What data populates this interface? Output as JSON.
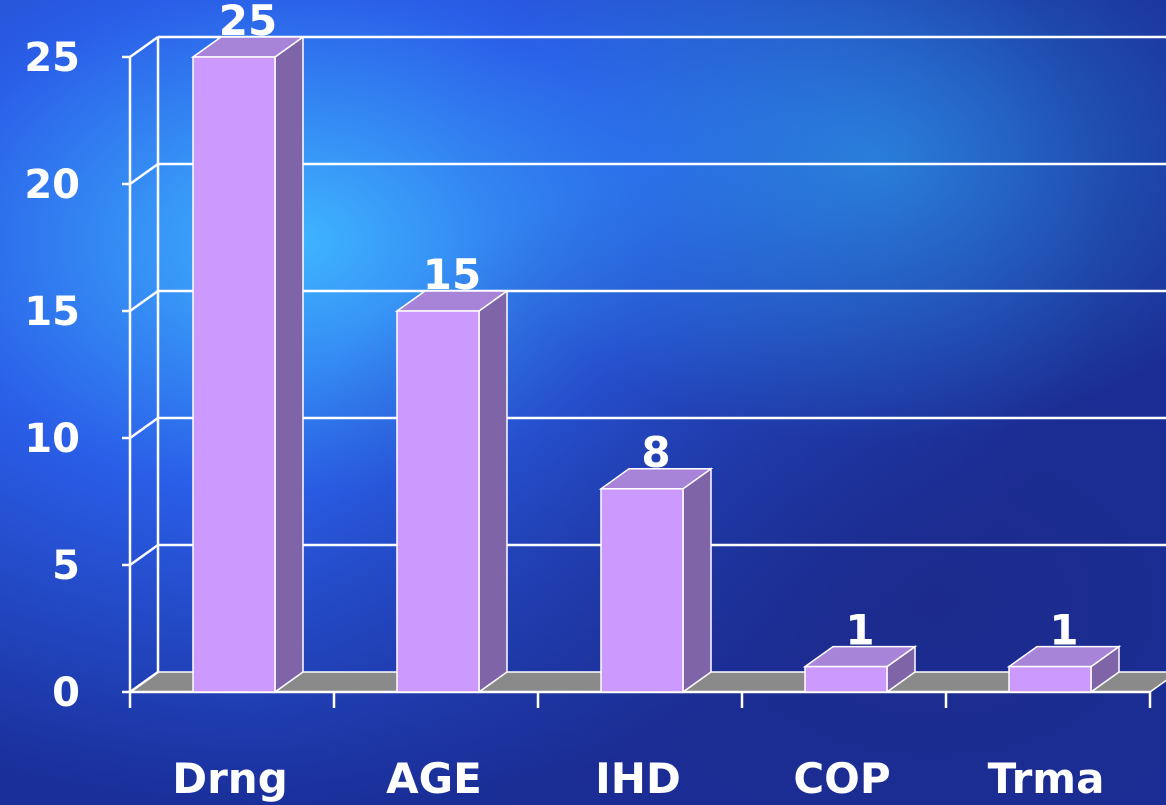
{
  "chart_data": {
    "type": "bar",
    "categories": [
      "Drng",
      "AGE",
      "IHD",
      "COP",
      "Trma"
    ],
    "values": [
      25,
      15,
      8,
      1,
      1
    ],
    "data_labels": [
      "25",
      "15",
      "8",
      "1",
      "1"
    ],
    "yticks": [
      "0",
      "5",
      "10",
      "15",
      "20",
      "25"
    ],
    "ylim": [
      0,
      25
    ],
    "title": "",
    "xlabel": "",
    "ylabel": "",
    "grid": true,
    "three_d": true,
    "colors": {
      "bar_front": "#cc99ff",
      "bar_side": "#8064a8",
      "bar_top": "#a884d8",
      "floor": "#8a8a8a",
      "gridline": "#ffffff",
      "text": "#ffffff"
    }
  }
}
